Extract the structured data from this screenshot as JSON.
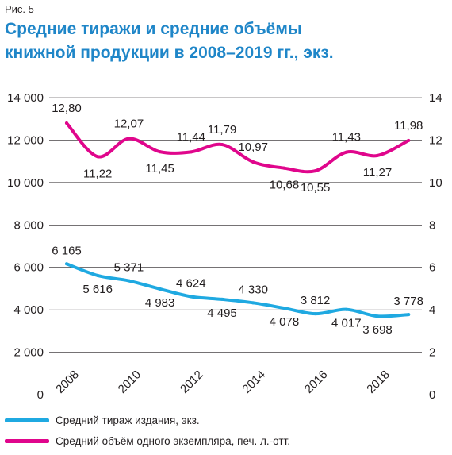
{
  "figure_label": "Рис. 5",
  "title_line1": "Средние тиражи и средние объёмы",
  "title_line2": "книжной продукции в 2008–2019 гг., экз.",
  "colors": {
    "print_run": "#1fa9e1",
    "volume": "#e0068c",
    "text": "#231f20",
    "grid": "#231f20"
  },
  "chart_data": {
    "type": "line",
    "x": [
      2008,
      2009,
      2010,
      2011,
      2012,
      2013,
      2014,
      2015,
      2016,
      2017,
      2018,
      2019
    ],
    "x_ticks": [
      "2008",
      "2010",
      "2012",
      "2014",
      "2016",
      "2018"
    ],
    "left_axis": {
      "ylim": [
        0,
        14000
      ],
      "ticks": [
        "0",
        "2 000",
        "4 000",
        "6 000",
        "8 000",
        "10 000",
        "12 000",
        "14 000"
      ]
    },
    "right_axis": {
      "ylim": [
        0,
        14
      ],
      "ticks": [
        "0",
        "2",
        "4",
        "6",
        "8",
        "10",
        "12",
        "14"
      ]
    },
    "grid": true,
    "series": [
      {
        "name": "Средний тираж издания, экз.",
        "axis": "left",
        "values": [
          6165,
          5616,
          5371,
          4983,
          4624,
          4495,
          4330,
          4078,
          3812,
          4017,
          3698,
          3778
        ],
        "labels": [
          "6 165",
          "5 616",
          "5 371",
          "4 983",
          "4 624",
          "4 495",
          "4 330",
          "4 078",
          "3 812",
          "4 017",
          "3 698",
          "3 778"
        ]
      },
      {
        "name": "Средний объём одного экземпляра, печ. л.-отт.",
        "axis": "right",
        "values": [
          12.8,
          11.22,
          12.07,
          11.45,
          11.44,
          11.79,
          10.97,
          10.68,
          10.55,
          11.43,
          11.27,
          11.98
        ],
        "labels": [
          "12,80",
          "11,22",
          "12,07",
          "11,45",
          "11,44",
          "11,79",
          "10,97",
          "10,68",
          "10,55",
          "11,43",
          "11,27",
          "11,98"
        ]
      }
    ]
  },
  "legend": [
    {
      "label": "Средний тираж издания, экз."
    },
    {
      "label": "Средний объём одного экземпляра, печ. л.-отт."
    }
  ]
}
